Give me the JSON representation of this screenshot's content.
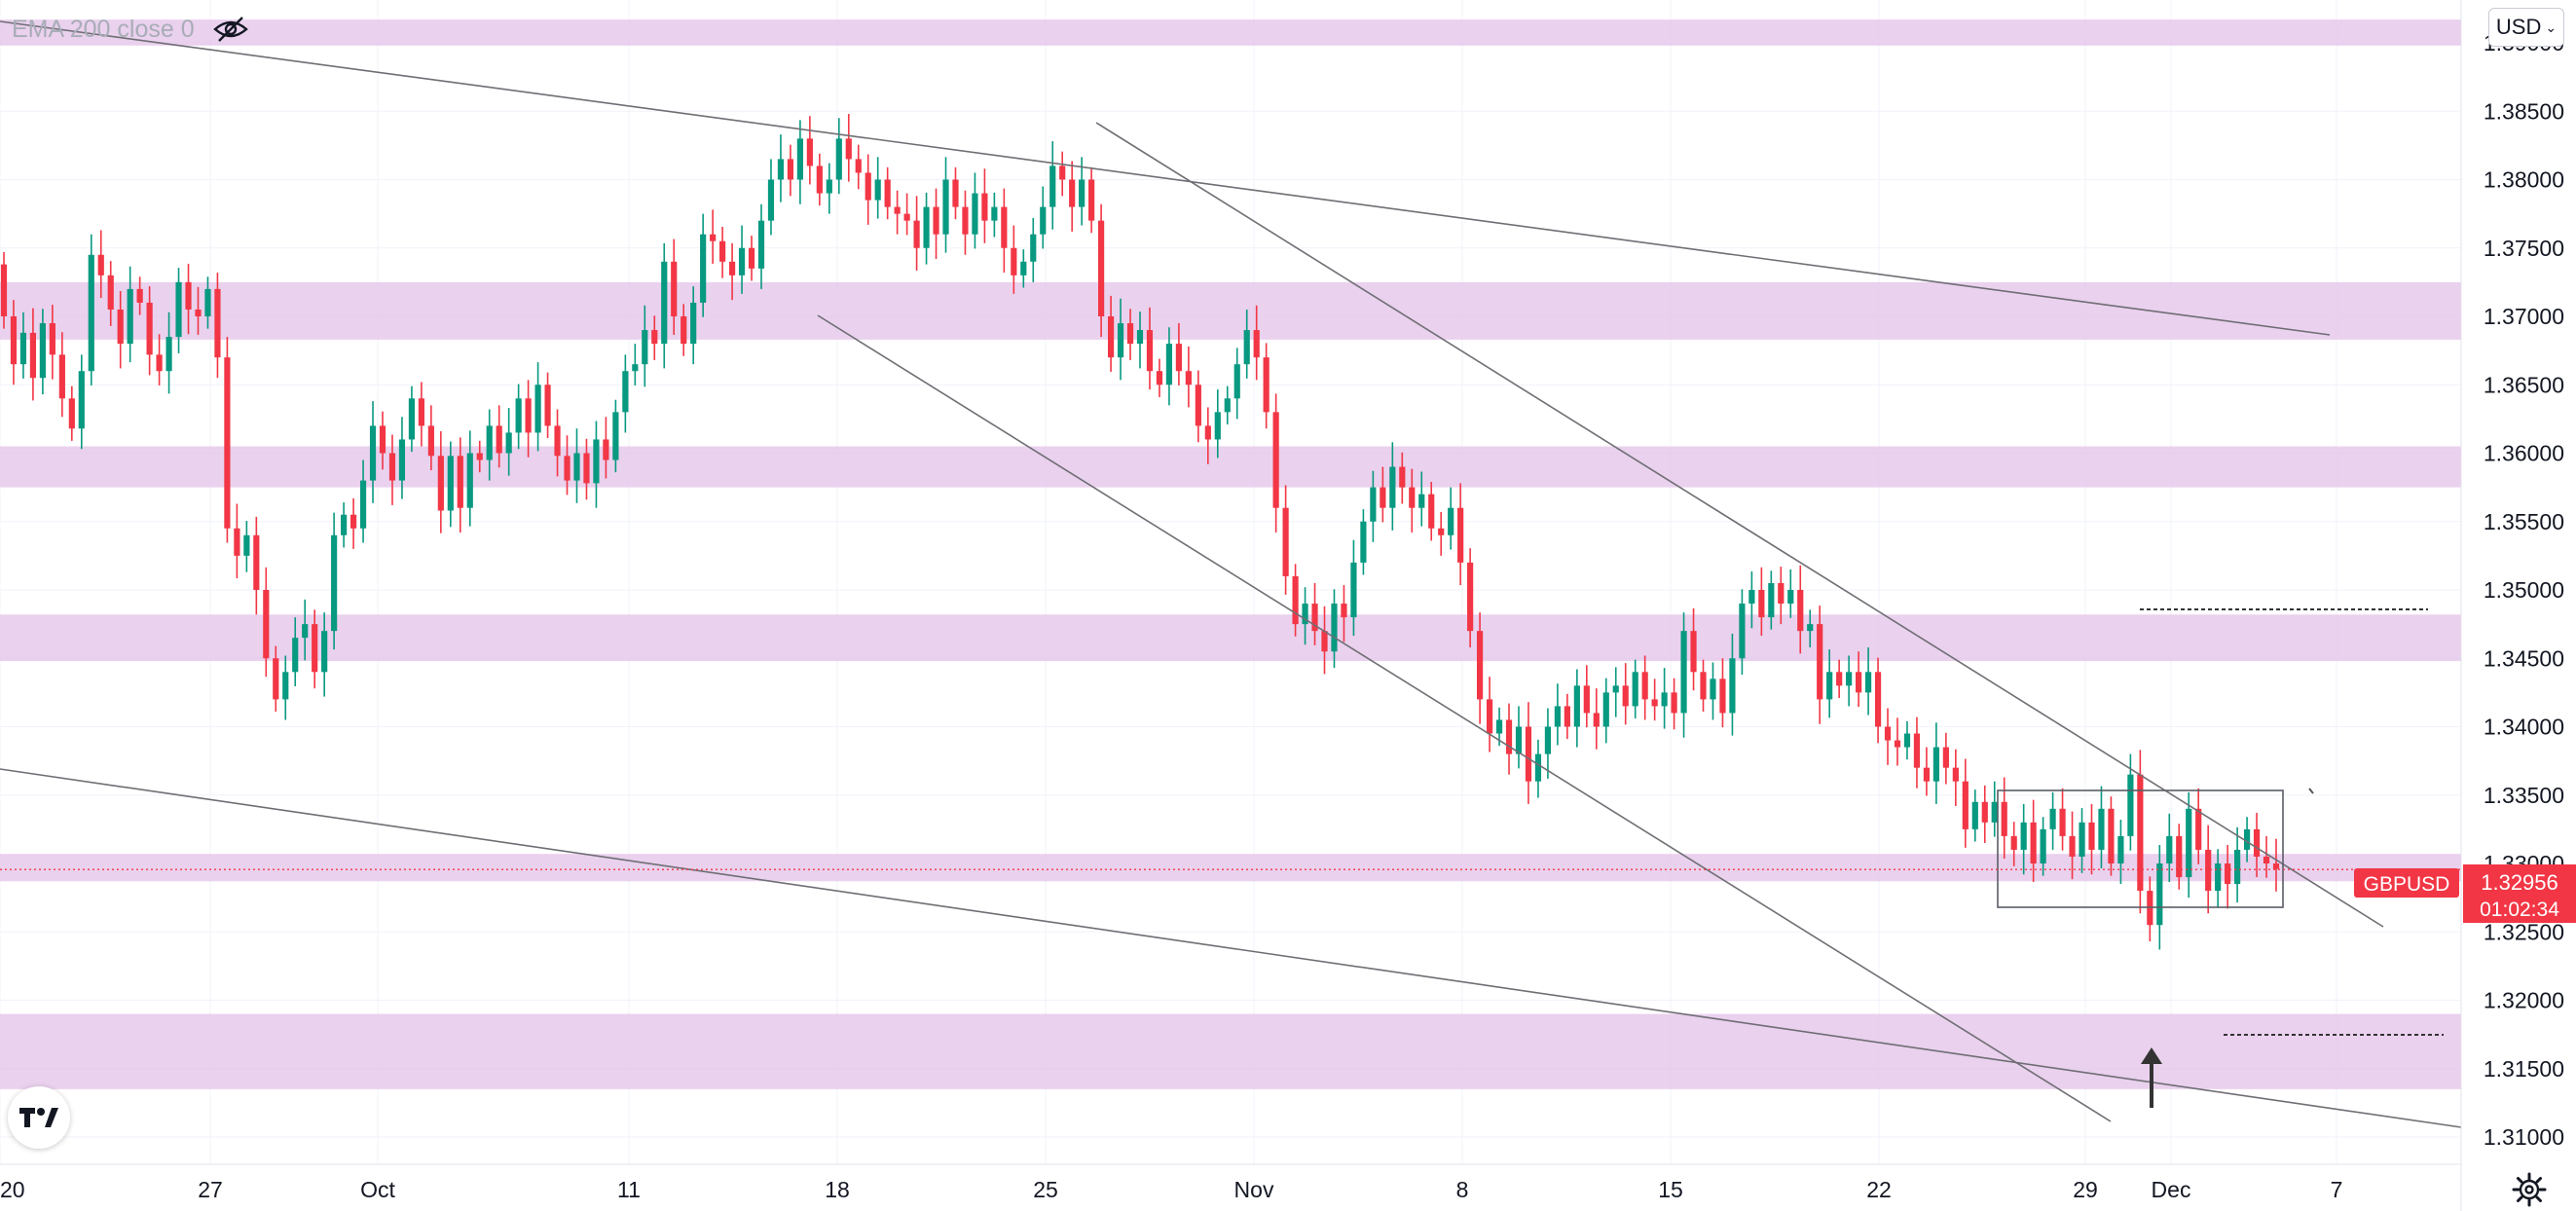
{
  "legend": {
    "indicator_text": "EMA 200 close 0"
  },
  "currency": {
    "label": "USD"
  },
  "price_label": {
    "symbol": "GBPUSD",
    "price": "1.32956",
    "countdown": "01:02:34",
    "color": "#f23645"
  },
  "colors": {
    "up": "#089981",
    "down": "#f23645",
    "zone": "#e1bee7",
    "trendline": "#6e6e74",
    "price_line": "#f23645"
  },
  "icons": [
    "eye-crossed-icon",
    "chevron-down-icon",
    "tradingview-logo-icon",
    "gear-icon",
    "arrow-up-icon"
  ],
  "chart_data": {
    "type": "candlestick",
    "symbol": "GBPUSD",
    "y_axis": {
      "min": 1.308,
      "max": 1.395,
      "ticks": [
        "1.39000",
        "1.38500",
        "1.38000",
        "1.37500",
        "1.37000",
        "1.36500",
        "1.36000",
        "1.35500",
        "1.35000",
        "1.34500",
        "1.34000",
        "1.33500",
        "1.33000",
        "1.32500",
        "1.32000",
        "1.31500",
        "1.31000"
      ]
    },
    "x_axis": {
      "ticks": [
        "20",
        "27",
        "Oct",
        "11",
        "18",
        "25",
        "Nov",
        "8",
        "15",
        "22",
        "29",
        "Dec",
        "7"
      ]
    },
    "last_price": 1.32956,
    "zones": [
      {
        "from": 1.3898,
        "to": 1.3917
      },
      {
        "from": 1.3683,
        "to": 1.3725
      },
      {
        "from": 1.3575,
        "to": 1.3605
      },
      {
        "from": 1.3448,
        "to": 1.3482
      },
      {
        "from": 1.3287,
        "to": 1.3307
      },
      {
        "from": 1.3135,
        "to": 1.319
      }
    ],
    "candles_4h_approx": [
      [
        1.3738,
        1.37
      ],
      [
        1.37,
        1.3665
      ],
      [
        1.3665,
        1.3688
      ],
      [
        1.3688,
        1.3655
      ],
      [
        1.3655,
        1.3695
      ],
      [
        1.3695,
        1.3672
      ],
      [
        1.3672,
        1.364
      ],
      [
        1.364,
        1.3618
      ],
      [
        1.3618,
        1.366
      ],
      [
        1.366,
        1.3745
      ],
      [
        1.3745,
        1.373
      ],
      [
        1.373,
        1.3705
      ],
      [
        1.3705,
        1.368
      ],
      [
        1.368,
        1.372
      ],
      [
        1.372,
        1.371
      ],
      [
        1.371,
        1.3672
      ],
      [
        1.3672,
        1.366
      ],
      [
        1.366,
        1.3685
      ],
      [
        1.3685,
        1.3725
      ],
      [
        1.3725,
        1.3705
      ],
      [
        1.3705,
        1.37
      ],
      [
        1.37,
        1.372
      ],
      [
        1.372,
        1.367
      ],
      [
        1.367,
        1.3545
      ],
      [
        1.3545,
        1.3525
      ],
      [
        1.3525,
        1.354
      ],
      [
        1.354,
        1.35
      ],
      [
        1.35,
        1.345
      ],
      [
        1.345,
        1.342
      ],
      [
        1.342,
        1.344
      ],
      [
        1.344,
        1.3465
      ],
      [
        1.3465,
        1.3475
      ],
      [
        1.3475,
        1.344
      ],
      [
        1.344,
        1.347
      ],
      [
        1.347,
        1.354
      ],
      [
        1.354,
        1.3555
      ],
      [
        1.3555,
        1.3545
      ],
      [
        1.3545,
        1.358
      ],
      [
        1.358,
        1.362
      ],
      [
        1.362,
        1.36
      ],
      [
        1.36,
        1.358
      ],
      [
        1.358,
        1.361
      ],
      [
        1.361,
        1.364
      ],
      [
        1.364,
        1.362
      ],
      [
        1.362,
        1.3598
      ],
      [
        1.3598,
        1.3558
      ],
      [
        1.3558,
        1.3598
      ],
      [
        1.3598,
        1.356
      ],
      [
        1.356,
        1.36
      ],
      [
        1.36,
        1.3595
      ],
      [
        1.3595,
        1.362
      ],
      [
        1.362,
        1.36
      ],
      [
        1.36,
        1.3615
      ],
      [
        1.3615,
        1.364
      ],
      [
        1.364,
        1.3615
      ],
      [
        1.3615,
        1.365
      ],
      [
        1.365,
        1.362
      ],
      [
        1.362,
        1.3598
      ],
      [
        1.3598,
        1.358
      ],
      [
        1.358,
        1.36
      ],
      [
        1.36,
        1.3578
      ],
      [
        1.3578,
        1.361
      ],
      [
        1.361,
        1.3595
      ],
      [
        1.3595,
        1.363
      ],
      [
        1.363,
        1.366
      ],
      [
        1.366,
        1.3665
      ],
      [
        1.3665,
        1.369
      ],
      [
        1.369,
        1.368
      ],
      [
        1.368,
        1.374
      ],
      [
        1.374,
        1.37
      ],
      [
        1.37,
        1.368
      ],
      [
        1.368,
        1.371
      ],
      [
        1.371,
        1.376
      ],
      [
        1.376,
        1.3755
      ],
      [
        1.3755,
        1.374
      ],
      [
        1.374,
        1.373
      ],
      [
        1.373,
        1.375
      ],
      [
        1.375,
        1.3735
      ],
      [
        1.3735,
        1.377
      ],
      [
        1.377,
        1.38
      ],
      [
        1.38,
        1.3815
      ],
      [
        1.3815,
        1.38
      ],
      [
        1.38,
        1.383
      ],
      [
        1.383,
        1.381
      ],
      [
        1.381,
        1.379
      ],
      [
        1.379,
        1.38
      ],
      [
        1.38,
        1.383
      ],
      [
        1.383,
        1.3815
      ],
      [
        1.3815,
        1.3805
      ],
      [
        1.3805,
        1.3785
      ],
      [
        1.3785,
        1.38
      ],
      [
        1.38,
        1.378
      ],
      [
        1.378,
        1.3775
      ],
      [
        1.3775,
        1.377
      ],
      [
        1.377,
        1.375
      ],
      [
        1.375,
        1.378
      ],
      [
        1.378,
        1.376
      ],
      [
        1.376,
        1.38
      ],
      [
        1.38,
        1.378
      ],
      [
        1.378,
        1.376
      ],
      [
        1.376,
        1.379
      ],
      [
        1.379,
        1.377
      ],
      [
        1.377,
        1.378
      ],
      [
        1.378,
        1.375
      ],
      [
        1.375,
        1.373
      ],
      [
        1.373,
        1.374
      ],
      [
        1.374,
        1.376
      ],
      [
        1.376,
        1.378
      ],
      [
        1.378,
        1.381
      ],
      [
        1.381,
        1.38
      ],
      [
        1.38,
        1.378
      ],
      [
        1.378,
        1.38
      ],
      [
        1.38,
        1.377
      ],
      [
        1.377,
        1.37
      ],
      [
        1.37,
        1.367
      ],
      [
        1.367,
        1.3695
      ],
      [
        1.3695,
        1.368
      ],
      [
        1.368,
        1.369
      ],
      [
        1.369,
        1.366
      ],
      [
        1.366,
        1.365
      ],
      [
        1.365,
        1.368
      ],
      [
        1.368,
        1.366
      ],
      [
        1.366,
        1.365
      ],
      [
        1.365,
        1.362
      ],
      [
        1.362,
        1.361
      ],
      [
        1.361,
        1.363
      ],
      [
        1.363,
        1.364
      ],
      [
        1.364,
        1.3665
      ],
      [
        1.3665,
        1.369
      ],
      [
        1.369,
        1.367
      ],
      [
        1.367,
        1.363
      ],
      [
        1.363,
        1.356
      ],
      [
        1.356,
        1.351
      ],
      [
        1.351,
        1.3475
      ],
      [
        1.3475,
        1.349
      ],
      [
        1.349,
        1.347
      ],
      [
        1.347,
        1.3455
      ],
      [
        1.3455,
        1.349
      ],
      [
        1.349,
        1.348
      ],
      [
        1.348,
        1.352
      ],
      [
        1.352,
        1.355
      ],
      [
        1.355,
        1.3575
      ],
      [
        1.3575,
        1.356
      ],
      [
        1.356,
        1.359
      ],
      [
        1.359,
        1.3575
      ],
      [
        1.3575,
        1.356
      ],
      [
        1.356,
        1.357
      ],
      [
        1.357,
        1.3545
      ],
      [
        1.3545,
        1.354
      ],
      [
        1.354,
        1.356
      ],
      [
        1.356,
        1.352
      ],
      [
        1.352,
        1.347
      ],
      [
        1.347,
        1.342
      ],
      [
        1.342,
        1.3395
      ],
      [
        1.3395,
        1.3405
      ],
      [
        1.3405,
        1.338
      ],
      [
        1.338,
        1.34
      ],
      [
        1.34,
        1.336
      ],
      [
        1.336,
        1.338
      ],
      [
        1.338,
        1.34
      ],
      [
        1.34,
        1.3415
      ],
      [
        1.3415,
        1.34
      ],
      [
        1.34,
        1.343
      ],
      [
        1.343,
        1.341
      ],
      [
        1.341,
        1.34
      ],
      [
        1.34,
        1.3425
      ],
      [
        1.3425,
        1.343
      ],
      [
        1.343,
        1.3415
      ],
      [
        1.3415,
        1.344
      ],
      [
        1.344,
        1.342
      ],
      [
        1.342,
        1.3415
      ],
      [
        1.3415,
        1.3425
      ],
      [
        1.3425,
        1.341
      ],
      [
        1.341,
        1.347
      ],
      [
        1.347,
        1.344
      ],
      [
        1.344,
        1.342
      ],
      [
        1.342,
        1.3435
      ],
      [
        1.3435,
        1.341
      ],
      [
        1.341,
        1.345
      ],
      [
        1.345,
        1.349
      ],
      [
        1.349,
        1.35
      ],
      [
        1.35,
        1.348
      ],
      [
        1.348,
        1.3505
      ],
      [
        1.3505,
        1.349
      ],
      [
        1.349,
        1.35
      ],
      [
        1.35,
        1.347
      ],
      [
        1.347,
        1.3475
      ],
      [
        1.3475,
        1.342
      ],
      [
        1.342,
        1.344
      ],
      [
        1.344,
        1.343
      ],
      [
        1.343,
        1.344
      ],
      [
        1.344,
        1.3425
      ],
      [
        1.3425,
        1.344
      ],
      [
        1.344,
        1.34
      ],
      [
        1.34,
        1.339
      ],
      [
        1.339,
        1.3385
      ],
      [
        1.3385,
        1.3395
      ],
      [
        1.3395,
        1.337
      ],
      [
        1.337,
        1.336
      ],
      [
        1.336,
        1.3385
      ],
      [
        1.3385,
        1.337
      ],
      [
        1.337,
        1.336
      ],
      [
        1.336,
        1.3325
      ],
      [
        1.3325,
        1.3345
      ],
      [
        1.3345,
        1.333
      ],
      [
        1.333,
        1.3345
      ],
      [
        1.3345,
        1.332
      ],
      [
        1.332,
        1.331
      ],
      [
        1.331,
        1.333
      ],
      [
        1.333,
        1.33
      ],
      [
        1.33,
        1.3325
      ],
      [
        1.3325,
        1.334
      ],
      [
        1.334,
        1.332
      ],
      [
        1.332,
        1.3305
      ],
      [
        1.3305,
        1.333
      ],
      [
        1.333,
        1.331
      ],
      [
        1.331,
        1.334
      ],
      [
        1.334,
        1.33
      ],
      [
        1.33,
        1.332
      ],
      [
        1.332,
        1.3365
      ],
      [
        1.3365,
        1.328
      ],
      [
        1.328,
        1.3255
      ],
      [
        1.3255,
        1.33
      ],
      [
        1.33,
        1.332
      ],
      [
        1.332,
        1.329
      ],
      [
        1.329,
        1.334
      ],
      [
        1.334,
        1.331
      ],
      [
        1.331,
        1.328
      ],
      [
        1.328,
        1.33
      ],
      [
        1.33,
        1.3285
      ],
      [
        1.3285,
        1.331
      ],
      [
        1.331,
        1.3325
      ],
      [
        1.3325,
        1.3305
      ],
      [
        1.3305,
        1.33
      ],
      [
        1.33,
        1.3296
      ]
    ]
  }
}
